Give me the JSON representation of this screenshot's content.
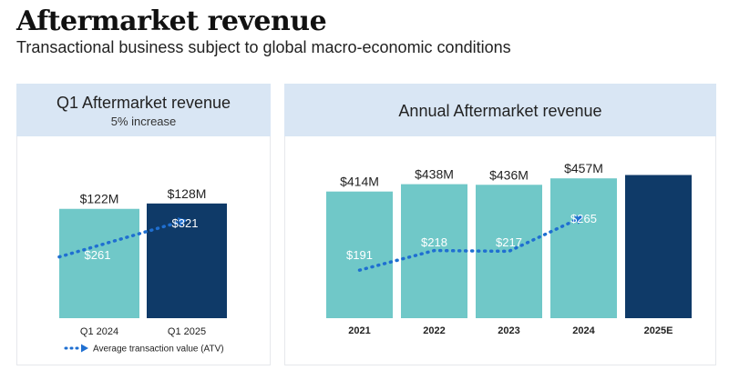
{
  "header": {
    "title": "Aftermarket revenue",
    "subtitle": "Transactional business subject to global macro-economic conditions"
  },
  "colors": {
    "teal": "#70c8c8",
    "navy": "#0f3a68",
    "atv_line": "#1f6fd1",
    "panel_head": "#d9e6f4"
  },
  "legend": {
    "label": "Average transaction value (ATV)"
  },
  "chart_data": [
    {
      "type": "bar",
      "title": "Q1 Aftermarket revenue",
      "subtitle": "5% increase",
      "categories": [
        "Q1 2024",
        "Q1 2025"
      ],
      "series": [
        {
          "name": "",
          "values": [
            122,
            128
          ],
          "labels": [
            "$122M",
            "$128M"
          ]
        }
      ],
      "atv": {
        "values": [
          261,
          321
        ],
        "labels": [
          "$261",
          "$321"
        ]
      },
      "bar_colors": [
        "teal",
        "navy"
      ],
      "ylim": [
        0,
        140
      ]
    },
    {
      "type": "bar",
      "title": "Annual Aftermarket revenue",
      "categories": [
        "2021",
        "2022",
        "2023",
        "2024",
        "2025E"
      ],
      "series": [
        {
          "name": "",
          "values": [
            414,
            438,
            436,
            457,
            468
          ],
          "labels": [
            "$414M",
            "$438M",
            "$436M",
            "$457M",
            ""
          ]
        }
      ],
      "atv": {
        "values": [
          191,
          218,
          217,
          265
        ],
        "labels": [
          "$191",
          "$218",
          "$217",
          "$265"
        ]
      },
      "bar_colors": [
        "teal",
        "teal",
        "teal",
        "teal",
        "navy"
      ],
      "ylim": [
        0,
        520
      ]
    }
  ]
}
